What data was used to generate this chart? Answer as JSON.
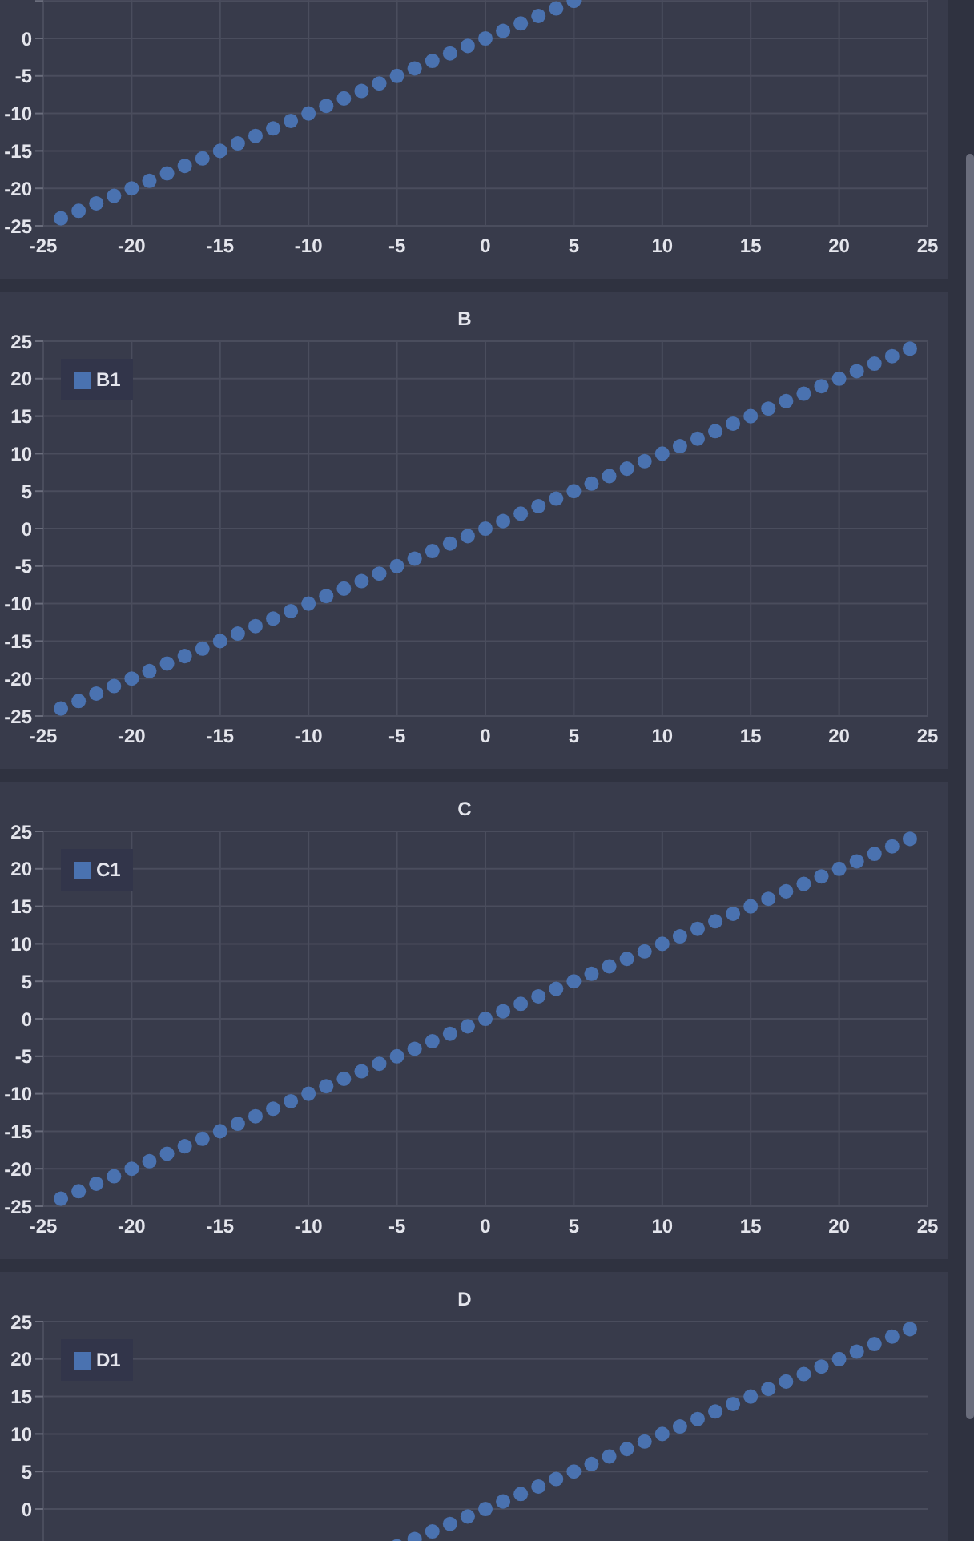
{
  "chart_data": [
    {
      "type": "scatter",
      "x": [
        -24,
        -23,
        -22,
        -21,
        -20,
        -19,
        -18,
        -17,
        -16,
        -15,
        -14,
        -13,
        -12,
        -11,
        -10,
        -9,
        -8,
        -7,
        -6,
        -5,
        -4,
        -3,
        -2,
        -1,
        0,
        1,
        2,
        3,
        4,
        5
      ],
      "series": [
        {
          "color": "#4a72b0",
          "values": [
            -24,
            -23,
            -22,
            -21,
            -20,
            -19,
            -18,
            -17,
            -16,
            -15,
            -14,
            -13,
            -12,
            -11,
            -10,
            -9,
            -8,
            -7,
            -6,
            -5,
            -4,
            -3,
            -2,
            -1,
            0,
            1,
            2,
            3,
            4,
            5
          ]
        }
      ],
      "xlim": [
        -25,
        25
      ],
      "xticks": [
        -25,
        -20,
        -15,
        -10,
        -5,
        0,
        5,
        10,
        15,
        20,
        25
      ],
      "ylim": [
        -25,
        25
      ],
      "yticks": [
        -25,
        -20,
        -15,
        -10,
        -5,
        0,
        {
          "value": 5,
          "label": null
        }
      ],
      "grid": true,
      "marker": "circle"
    },
    {
      "type": "scatter",
      "title": "B",
      "x": [
        -24,
        -23,
        -22,
        -21,
        -20,
        -19,
        -18,
        -17,
        -16,
        -15,
        -14,
        -13,
        -12,
        -11,
        -10,
        -9,
        -8,
        -7,
        -6,
        -5,
        -4,
        -3,
        -2,
        -1,
        0,
        1,
        2,
        3,
        4,
        5,
        6,
        7,
        8,
        9,
        10,
        11,
        12,
        13,
        14,
        15,
        16,
        17,
        18,
        19,
        20,
        21,
        22,
        23,
        24
      ],
      "series": [
        {
          "name": "B1",
          "color": "#4a72b0",
          "values": [
            -24,
            -23,
            -22,
            -21,
            -20,
            -19,
            -18,
            -17,
            -16,
            -15,
            -14,
            -13,
            -12,
            -11,
            -10,
            -9,
            -8,
            -7,
            -6,
            -5,
            -4,
            -3,
            -2,
            -1,
            0,
            1,
            2,
            3,
            4,
            5,
            6,
            7,
            8,
            9,
            10,
            11,
            12,
            13,
            14,
            15,
            16,
            17,
            18,
            19,
            20,
            21,
            22,
            23,
            24
          ]
        }
      ],
      "xlim": [
        -25,
        25
      ],
      "xticks": [
        -25,
        -20,
        -15,
        -10,
        -5,
        0,
        5,
        10,
        15,
        20,
        25
      ],
      "ylim": [
        -25,
        25
      ],
      "yticks": [
        -25,
        -20,
        -15,
        -10,
        -5,
        0,
        5,
        10,
        15,
        20,
        25
      ],
      "grid": true,
      "legend": "top left",
      "marker": "circle"
    },
    {
      "type": "scatter",
      "title": "C",
      "x": [
        -24,
        -23,
        -22,
        -21,
        -20,
        -19,
        -18,
        -17,
        -16,
        -15,
        -14,
        -13,
        -12,
        -11,
        -10,
        -9,
        -8,
        -7,
        -6,
        -5,
        -4,
        -3,
        -2,
        -1,
        0,
        1,
        2,
        3,
        4,
        5,
        6,
        7,
        8,
        9,
        10,
        11,
        12,
        13,
        14,
        15,
        16,
        17,
        18,
        19,
        20,
        21,
        22,
        23,
        24
      ],
      "series": [
        {
          "name": "C1",
          "color": "#4a72b0",
          "values": [
            -24,
            -23,
            -22,
            -21,
            -20,
            -19,
            -18,
            -17,
            -16,
            -15,
            -14,
            -13,
            -12,
            -11,
            -10,
            -9,
            -8,
            -7,
            -6,
            -5,
            -4,
            -3,
            -2,
            -1,
            0,
            1,
            2,
            3,
            4,
            5,
            6,
            7,
            8,
            9,
            10,
            11,
            12,
            13,
            14,
            15,
            16,
            17,
            18,
            19,
            20,
            21,
            22,
            23,
            24
          ]
        }
      ],
      "xlim": [
        -25,
        25
      ],
      "xticks": [
        -25,
        -20,
        -15,
        -10,
        -5,
        0,
        5,
        10,
        15,
        20,
        25
      ],
      "ylim": [
        -25,
        25
      ],
      "yticks": [
        -25,
        -20,
        -15,
        -10,
        -5,
        0,
        5,
        10,
        15,
        20,
        25
      ],
      "grid": true,
      "legend": "top left",
      "marker": "circle"
    },
    {
      "type": "scatter",
      "title": "D",
      "x": [
        -5,
        -4,
        -3,
        -2,
        -1,
        0,
        1,
        2,
        3,
        4,
        5,
        6,
        7,
        8,
        9,
        10,
        11,
        12,
        13,
        14,
        15,
        16,
        17,
        18,
        19,
        20,
        21,
        22,
        23,
        24
      ],
      "series": [
        {
          "name": "D1",
          "color": "#4a72b0",
          "values": [
            -5,
            -4,
            -3,
            -2,
            -1,
            0,
            1,
            2,
            3,
            4,
            5,
            6,
            7,
            8,
            9,
            10,
            11,
            12,
            13,
            14,
            15,
            16,
            17,
            18,
            19,
            20,
            21,
            22,
            23,
            24
          ]
        }
      ],
      "xlim": [
        -25,
        25
      ],
      "xticks": [
        -25,
        -20,
        -15,
        -10,
        -5,
        0,
        5,
        10,
        15,
        20,
        25
      ],
      "ylim": [
        -25,
        25
      ],
      "yticks": [
        {
          "value": -5,
          "label": null
        },
        0,
        5,
        10,
        15,
        20,
        25
      ],
      "grid": true,
      "legend": "top left",
      "marker": "circle",
      "tick_labels": "y"
    }
  ]
}
